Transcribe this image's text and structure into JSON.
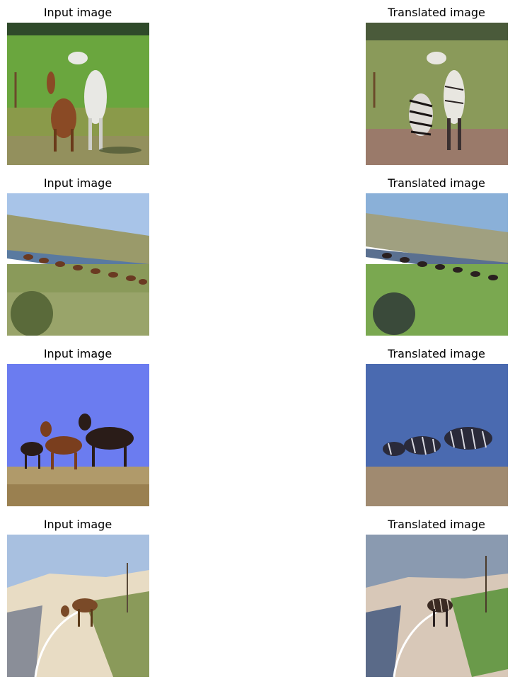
{
  "rows": [
    {
      "input_title": "Input image",
      "output_title": "Translated image",
      "input_scene": "two-horses-rearing-in-meadow",
      "output_scene": "zebra-striped-horses-in-meadow"
    },
    {
      "input_title": "Input image",
      "output_title": "Translated image",
      "input_scene": "herd-of-horses-along-river",
      "output_scene": "striped-herd-along-river"
    },
    {
      "input_title": "Input image",
      "output_title": "Translated image",
      "input_scene": "three-horses-running-blue-sky",
      "output_scene": "striped-horses-blue-sky"
    },
    {
      "input_title": "Input image",
      "output_title": "Translated image",
      "input_scene": "horse-on-beach-road",
      "output_scene": "striped-horse-on-beach-road"
    }
  ],
  "colors": {
    "grass": "#6aa63e",
    "sky_blue": "#6b7cf0",
    "sand": "#e8dcc4",
    "horse_brown": "#8a4a25",
    "horse_dark": "#2a1c18",
    "horse_white": "#e8e8e4"
  }
}
